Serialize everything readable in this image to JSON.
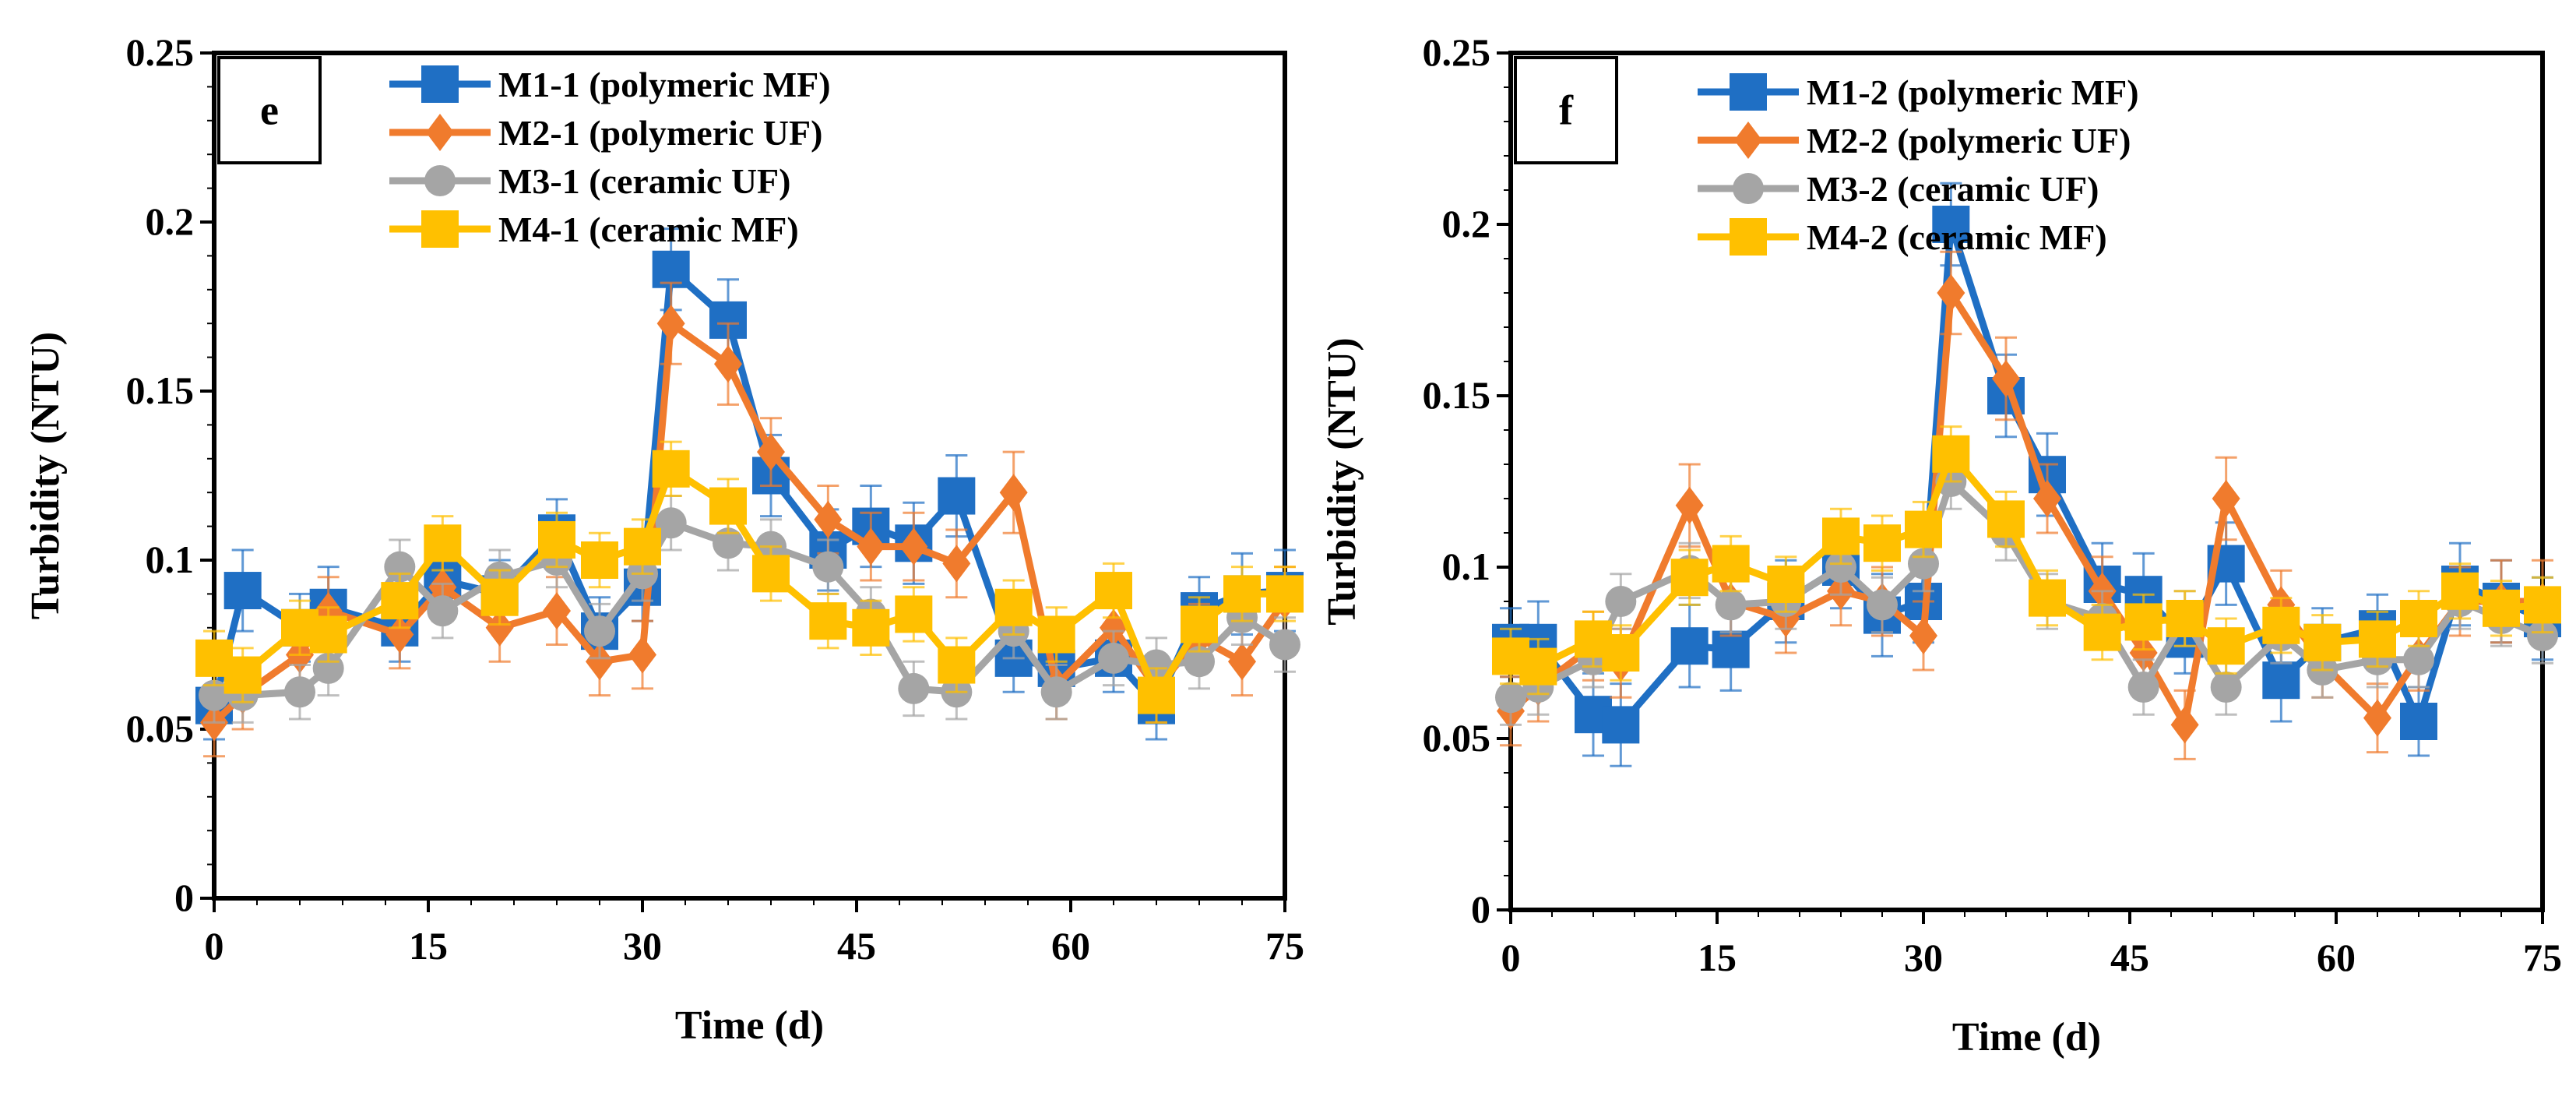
{
  "chart_data": [
    {
      "type": "line",
      "panel_label": "e",
      "xlabel": "Time (d)",
      "ylabel": "Turbidity (NTU)",
      "xlim": [
        0,
        75
      ],
      "ylim": [
        0,
        0.25
      ],
      "xticks": [
        "0",
        "15",
        "30",
        "45",
        "60",
        "75"
      ],
      "yticks": [
        "0",
        "0.05",
        "0.1",
        "0.15",
        "0.2",
        "0.25"
      ],
      "grid": false,
      "legend_position": "top-left",
      "series": [
        {
          "name": "M1-1 (polymeric MF)",
          "color": "#1f6fc4",
          "marker": "square",
          "x": [
            0,
            2,
            6,
            8,
            13,
            16,
            20,
            24,
            27,
            30,
            32,
            36,
            39,
            43,
            46,
            49,
            52,
            56,
            59,
            63,
            66,
            69,
            72,
            75
          ],
          "y": [
            0.057,
            0.091,
            0.08,
            0.086,
            0.08,
            0.094,
            0.09,
            0.108,
            0.079,
            0.092,
            0.186,
            0.171,
            0.125,
            0.103,
            0.11,
            0.105,
            0.119,
            0.071,
            0.068,
            0.071,
            0.057,
            0.085,
            0.09,
            0.091
          ],
          "err": [
            0.01,
            0.012,
            0.01,
            0.012,
            0.01,
            0.01,
            0.01,
            0.01,
            0.01,
            0.01,
            0.012,
            0.012,
            0.012,
            0.012,
            0.012,
            0.012,
            0.012,
            0.01,
            0.01,
            0.01,
            0.01,
            0.01,
            0.012,
            0.012
          ]
        },
        {
          "name": "M2-1 (polymeric UF)",
          "color": "#f07b2d",
          "marker": "diamond",
          "x": [
            0,
            2,
            6,
            8,
            13,
            16,
            20,
            24,
            27,
            30,
            32,
            36,
            39,
            43,
            46,
            49,
            52,
            56,
            59,
            63,
            66,
            69,
            72,
            75
          ],
          "y": [
            0.052,
            0.06,
            0.072,
            0.085,
            0.078,
            0.092,
            0.08,
            0.085,
            0.07,
            0.072,
            0.17,
            0.158,
            0.132,
            0.112,
            0.104,
            0.104,
            0.099,
            0.12,
            0.063,
            0.08,
            0.062,
            0.077,
            0.07,
            0.088
          ],
          "err": [
            0.01,
            0.01,
            0.01,
            0.01,
            0.01,
            0.01,
            0.01,
            0.01,
            0.01,
            0.01,
            0.012,
            0.012,
            0.01,
            0.01,
            0.01,
            0.01,
            0.01,
            0.012,
            0.01,
            0.01,
            0.01,
            0.01,
            0.01,
            0.01
          ]
        },
        {
          "name": "M3-1 (ceramic UF)",
          "color": "#a5a5a5",
          "marker": "circle",
          "x": [
            0,
            2,
            6,
            8,
            13,
            16,
            20,
            24,
            27,
            30,
            32,
            36,
            39,
            43,
            46,
            49,
            52,
            56,
            59,
            63,
            66,
            69,
            72,
            75
          ],
          "y": [
            0.06,
            0.06,
            0.061,
            0.068,
            0.098,
            0.085,
            0.095,
            0.1,
            0.079,
            0.096,
            0.111,
            0.105,
            0.104,
            0.098,
            0.084,
            0.062,
            0.061,
            0.079,
            0.061,
            0.071,
            0.069,
            0.07,
            0.083,
            0.075
          ],
          "err": [
            0.008,
            0.008,
            0.008,
            0.008,
            0.008,
            0.008,
            0.008,
            0.008,
            0.008,
            0.008,
            0.008,
            0.008,
            0.008,
            0.008,
            0.008,
            0.008,
            0.008,
            0.008,
            0.008,
            0.008,
            0.008,
            0.008,
            0.008,
            0.008
          ]
        },
        {
          "name": "M4-1 (ceramic MF)",
          "color": "#ffc000",
          "marker": "square",
          "x": [
            0,
            2,
            6,
            8,
            13,
            16,
            20,
            24,
            27,
            30,
            32,
            36,
            39,
            43,
            46,
            49,
            52,
            56,
            59,
            63,
            66,
            69,
            72,
            75
          ],
          "y": [
            0.071,
            0.066,
            0.08,
            0.078,
            0.088,
            0.105,
            0.089,
            0.106,
            0.1,
            0.104,
            0.127,
            0.116,
            0.096,
            0.082,
            0.08,
            0.084,
            0.069,
            0.086,
            0.078,
            0.091,
            0.06,
            0.081,
            0.09,
            0.09
          ],
          "err": [
            0.008,
            0.008,
            0.008,
            0.008,
            0.008,
            0.008,
            0.008,
            0.008,
            0.008,
            0.008,
            0.008,
            0.008,
            0.008,
            0.008,
            0.008,
            0.008,
            0.008,
            0.008,
            0.008,
            0.008,
            0.008,
            0.008,
            0.008,
            0.008
          ]
        }
      ]
    },
    {
      "type": "line",
      "panel_label": "f",
      "xlabel": "Time (d)",
      "ylabel": "Turbidity (NTU)",
      "xlim": [
        0,
        75
      ],
      "ylim": [
        0,
        0.25
      ],
      "xticks": [
        "0",
        "15",
        "30",
        "45",
        "60",
        "75"
      ],
      "yticks": [
        "0",
        "0.05",
        "0.1",
        "0.15",
        "0.2",
        "0.25"
      ],
      "grid": false,
      "legend_position": "top-left",
      "series": [
        {
          "name": "M1-2 (polymeric MF)",
          "color": "#1f6fc4",
          "marker": "square",
          "x": [
            0,
            2,
            6,
            8,
            13,
            16,
            20,
            24,
            27,
            30,
            32,
            36,
            39,
            43,
            46,
            49,
            52,
            56,
            59,
            63,
            66,
            69,
            72,
            75
          ],
          "y": [
            0.078,
            0.078,
            0.057,
            0.054,
            0.077,
            0.076,
            0.09,
            0.1,
            0.086,
            0.09,
            0.2,
            0.15,
            0.127,
            0.095,
            0.092,
            0.079,
            0.101,
            0.067,
            0.078,
            0.082,
            0.055,
            0.095,
            0.09,
            0.085
          ],
          "err": [
            0.01,
            0.012,
            0.012,
            0.012,
            0.012,
            0.012,
            0.012,
            0.012,
            0.012,
            0.012,
            0.012,
            0.012,
            0.012,
            0.012,
            0.012,
            0.01,
            0.012,
            0.012,
            0.01,
            0.01,
            0.01,
            0.012,
            0.012,
            0.012
          ]
        },
        {
          "name": "M2-2 (polymeric UF)",
          "color": "#f07b2d",
          "marker": "diamond",
          "x": [
            0,
            2,
            6,
            8,
            13,
            16,
            20,
            24,
            27,
            30,
            32,
            36,
            39,
            43,
            46,
            49,
            52,
            56,
            59,
            63,
            66,
            69,
            72,
            75
          ],
          "y": [
            0.058,
            0.065,
            0.077,
            0.072,
            0.118,
            0.09,
            0.085,
            0.093,
            0.09,
            0.08,
            0.18,
            0.155,
            0.12,
            0.093,
            0.075,
            0.054,
            0.12,
            0.089,
            0.072,
            0.056,
            0.074,
            0.09,
            0.09,
            0.09
          ],
          "err": [
            0.01,
            0.01,
            0.01,
            0.01,
            0.012,
            0.01,
            0.01,
            0.01,
            0.01,
            0.01,
            0.012,
            0.012,
            0.01,
            0.01,
            0.01,
            0.01,
            0.012,
            0.01,
            0.01,
            0.01,
            0.01,
            0.01,
            0.012,
            0.012
          ]
        },
        {
          "name": "M3-2 (ceramic UF)",
          "color": "#a5a5a5",
          "marker": "circle",
          "x": [
            0,
            2,
            6,
            8,
            13,
            16,
            20,
            24,
            27,
            30,
            32,
            36,
            39,
            43,
            46,
            49,
            52,
            56,
            59,
            63,
            66,
            69,
            72,
            75
          ],
          "y": [
            0.062,
            0.065,
            0.073,
            0.09,
            0.099,
            0.089,
            0.09,
            0.1,
            0.089,
            0.101,
            0.125,
            0.11,
            0.09,
            0.085,
            0.065,
            0.085,
            0.065,
            0.08,
            0.07,
            0.073,
            0.073,
            0.09,
            0.085,
            0.08
          ],
          "err": [
            0.008,
            0.008,
            0.008,
            0.008,
            0.008,
            0.008,
            0.008,
            0.008,
            0.008,
            0.008,
            0.008,
            0.008,
            0.008,
            0.008,
            0.008,
            0.008,
            0.008,
            0.008,
            0.008,
            0.008,
            0.008,
            0.008,
            0.008,
            0.008
          ]
        },
        {
          "name": "M4-2 (ceramic MF)",
          "color": "#ffc000",
          "marker": "square",
          "x": [
            0,
            2,
            6,
            8,
            13,
            16,
            20,
            24,
            27,
            30,
            32,
            36,
            39,
            43,
            46,
            49,
            52,
            56,
            59,
            63,
            66,
            69,
            72,
            75
          ],
          "y": [
            0.074,
            0.071,
            0.079,
            0.075,
            0.097,
            0.101,
            0.095,
            0.109,
            0.107,
            0.111,
            0.133,
            0.114,
            0.091,
            0.081,
            0.084,
            0.085,
            0.077,
            0.083,
            0.078,
            0.079,
            0.085,
            0.093,
            0.088,
            0.089
          ],
          "err": [
            0.008,
            0.008,
            0.008,
            0.008,
            0.008,
            0.008,
            0.008,
            0.008,
            0.008,
            0.008,
            0.008,
            0.008,
            0.008,
            0.008,
            0.008,
            0.008,
            0.008,
            0.008,
            0.008,
            0.008,
            0.008,
            0.008,
            0.008,
            0.008
          ]
        }
      ]
    }
  ]
}
